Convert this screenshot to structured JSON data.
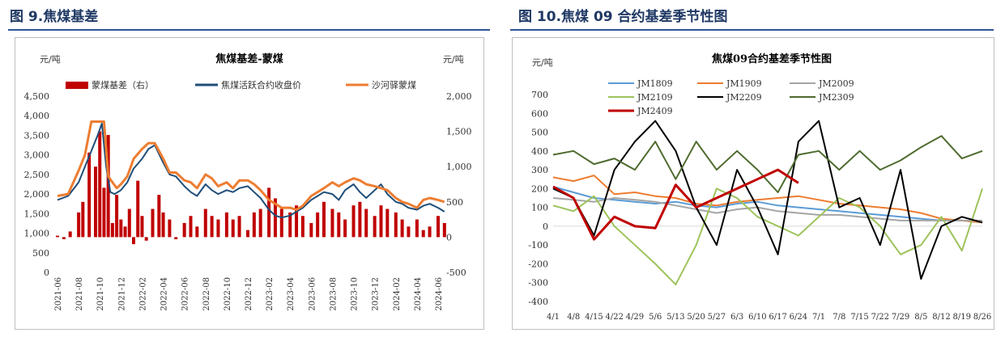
{
  "figures": [
    {
      "title": "图 9.焦煤基差"
    },
    {
      "title": "图 10.焦煤 09 合约基差季节性图"
    }
  ],
  "chart_data": [
    {
      "type": "bar+line",
      "title": "焦煤基差-蒙煤",
      "left_unit": "元/吨",
      "right_unit": "元/吨",
      "left_ylim": [
        0,
        4500
      ],
      "left_ticks": [
        "0",
        "500",
        "1,000",
        "1,500",
        "2,000",
        "2,500",
        "3,000",
        "3,500",
        "4,000",
        "4,500"
      ],
      "right_ylim": [
        -500,
        2000
      ],
      "right_ticks": [
        "-500",
        "0",
        "500",
        "1,000",
        "1,500",
        "2,000"
      ],
      "x_ticks": [
        "2021-06",
        "2021-08",
        "2021-10",
        "2021-12",
        "2022-02",
        "2022-04",
        "2022-06",
        "2022-08",
        "2022-10",
        "2022-12",
        "2023-02",
        "2023-04",
        "2023-06",
        "2023-08",
        "2023-10",
        "2023-12",
        "2024-02",
        "2024-04",
        "2024-06"
      ],
      "series": [
        {
          "name": "蒙煤基差（右）",
          "kind": "bar",
          "axis": "right",
          "color": "#c00000",
          "x": [
            0,
            0.3,
            0.6,
            1,
            1.2,
            1.5,
            1.8,
            2.0,
            2.2,
            2.4,
            2.6,
            2.8,
            3.0,
            3.2,
            3.4,
            3.6,
            3.8,
            4.0,
            4.2,
            4.5,
            4.8,
            5.0,
            5.3,
            5.6,
            6.0,
            6.3,
            6.6,
            7.0,
            7.3,
            7.6,
            8.0,
            8.3,
            8.6,
            9.0,
            9.3,
            9.6,
            10.0,
            10.3,
            10.6,
            11.0,
            11.3,
            11.6,
            12.0,
            12.3,
            12.6,
            13.0,
            13.3,
            13.6,
            14.0,
            14.3,
            14.6,
            15.0,
            15.3,
            15.6,
            16.0,
            16.3,
            16.6,
            17.0,
            17.3,
            17.6,
            18.0,
            18.3
          ],
          "values": [
            20,
            -30,
            80,
            350,
            500,
            1200,
            1000,
            1500,
            700,
            1450,
            200,
            600,
            250,
            150,
            400,
            -100,
            800,
            300,
            -50,
            400,
            600,
            350,
            250,
            -30,
            200,
            300,
            150,
            400,
            300,
            250,
            350,
            250,
            300,
            100,
            350,
            400,
            700,
            550,
            400,
            350,
            450,
            300,
            200,
            350,
            500,
            400,
            350,
            250,
            450,
            500,
            400,
            300,
            450,
            400,
            350,
            250,
            150,
            250,
            100,
            150,
            300,
            200
          ]
        },
        {
          "name": "焦煤活跃合约收盘价",
          "kind": "line",
          "axis": "left",
          "color": "#1f4e79",
          "x": [
            0,
            0.5,
            1,
            1.3,
            1.6,
            1.9,
            2.1,
            2.3,
            2.5,
            2.7,
            3,
            3.3,
            3.6,
            4,
            4.3,
            4.6,
            5,
            5.3,
            5.6,
            6,
            6.3,
            6.6,
            7,
            7.3,
            7.6,
            8,
            8.3,
            8.6,
            9,
            9.3,
            9.6,
            10,
            10.3,
            10.6,
            11,
            11.3,
            11.6,
            12,
            12.3,
            12.6,
            13,
            13.3,
            13.6,
            14,
            14.3,
            14.6,
            15,
            15.3,
            15.6,
            16,
            16.3,
            16.6,
            17,
            17.3,
            17.6,
            18,
            18.3
          ],
          "values": [
            1850,
            1950,
            2300,
            2700,
            3100,
            3500,
            3800,
            2700,
            2050,
            2000,
            2100,
            2300,
            2650,
            2900,
            3150,
            3250,
            2800,
            2500,
            2450,
            2200,
            2050,
            1950,
            2250,
            2100,
            2000,
            2100,
            2050,
            2150,
            2200,
            2050,
            1900,
            1600,
            1450,
            1400,
            1450,
            1550,
            1650,
            1850,
            1950,
            2050,
            2000,
            1850,
            2100,
            2250,
            2050,
            1900,
            2100,
            2250,
            2000,
            1800,
            1750,
            1650,
            1600,
            1700,
            1750,
            1650,
            1550
          ]
        },
        {
          "name": "沙河驿蒙煤",
          "kind": "line",
          "axis": "left",
          "color": "#ed7d31",
          "x": [
            0,
            0.5,
            1,
            1.3,
            1.6,
            1.9,
            2.2,
            2.4,
            2.6,
            2.8,
            3,
            3.3,
            3.6,
            4,
            4.3,
            4.6,
            5,
            5.3,
            5.6,
            6,
            6.3,
            6.6,
            7,
            7.3,
            7.6,
            8,
            8.3,
            8.6,
            9,
            9.3,
            9.6,
            10,
            10.3,
            10.6,
            11,
            11.3,
            11.6,
            12,
            12.3,
            12.6,
            13,
            13.3,
            13.6,
            14,
            14.3,
            14.6,
            15,
            15.3,
            15.6,
            16,
            16.3,
            16.6,
            17,
            17.3,
            17.6,
            18,
            18.3
          ],
          "values": [
            1950,
            2000,
            2600,
            3000,
            3850,
            3850,
            3850,
            2450,
            2300,
            2150,
            2250,
            2450,
            2900,
            3150,
            3300,
            3300,
            2900,
            2550,
            2550,
            2350,
            2300,
            2150,
            2500,
            2400,
            2200,
            2300,
            2150,
            2350,
            2350,
            2250,
            2100,
            1850,
            1750,
            1650,
            1650,
            1600,
            1700,
            1950,
            2050,
            2150,
            2300,
            2200,
            2300,
            2400,
            2350,
            2250,
            2200,
            2150,
            2100,
            1900,
            1800,
            1750,
            1650,
            1850,
            1900,
            1850,
            1800
          ]
        }
      ]
    },
    {
      "type": "line",
      "title": "焦煤09合约基差季节性图",
      "unit": "元/吨",
      "ylim": [
        -400,
        700
      ],
      "y_ticks": [
        "700",
        "600",
        "500",
        "400",
        "300",
        "200",
        "100",
        "0",
        "-100",
        "-200",
        "-300",
        "-400"
      ],
      "x_ticks": [
        "4/1",
        "4/8",
        "4/15",
        "4/22",
        "4/29",
        "5/6",
        "5/13",
        "5/20",
        "5/27",
        "6/3",
        "6/10",
        "6/17",
        "6/24",
        "7/1",
        "7/8",
        "7/15",
        "7/22",
        "7/29",
        "8/5",
        "8/12",
        "8/19",
        "8/26"
      ],
      "series": [
        {
          "name": "JM1809",
          "color": "#5b9bd5",
          "x": [
            0,
            1,
            2,
            3,
            4,
            5,
            6,
            7,
            8,
            9,
            10,
            11,
            12,
            13,
            14,
            15,
            16,
            17,
            18,
            19,
            20,
            21
          ],
          "values": [
            210,
            180,
            150,
            140,
            130,
            120,
            130,
            110,
            100,
            120,
            130,
            110,
            100,
            90,
            80,
            70,
            60,
            50,
            40,
            30,
            30,
            20
          ]
        },
        {
          "name": "JM1909",
          "color": "#ed7d31",
          "x": [
            0,
            1,
            2,
            3,
            4,
            5,
            6,
            7,
            8,
            9,
            10,
            11,
            12,
            13,
            14,
            15,
            16,
            17,
            18,
            19,
            20,
            21
          ],
          "values": [
            260,
            240,
            270,
            170,
            180,
            160,
            150,
            120,
            110,
            130,
            140,
            150,
            160,
            140,
            120,
            110,
            100,
            90,
            70,
            40,
            30,
            20
          ]
        },
        {
          "name": "JM2009",
          "color": "#a5a5a5",
          "x": [
            0,
            1,
            2,
            3,
            4,
            5,
            6,
            7,
            8,
            9,
            10,
            11,
            12,
            13,
            14,
            15,
            16,
            17,
            18,
            19,
            20,
            21
          ],
          "values": [
            150,
            140,
            130,
            150,
            140,
            130,
            110,
            90,
            70,
            90,
            100,
            80,
            70,
            60,
            60,
            50,
            40,
            30,
            30,
            30,
            30,
            30
          ]
        },
        {
          "name": "JM2109",
          "color": "#9dc35b",
          "x": [
            0,
            1,
            2,
            3,
            4,
            5,
            6,
            7,
            8,
            9,
            10,
            11,
            12,
            13,
            14,
            15,
            16,
            17,
            18,
            19,
            20,
            21
          ],
          "values": [
            110,
            80,
            160,
            0,
            -100,
            -200,
            -310,
            -100,
            200,
            150,
            50,
            0,
            -50,
            50,
            150,
            100,
            0,
            -150,
            -100,
            50,
            -130,
            200
          ]
        },
        {
          "name": "JM2209",
          "color": "#000000",
          "x": [
            0,
            1,
            2,
            3,
            4,
            5,
            6,
            7,
            8,
            9,
            10,
            11,
            12,
            13,
            14,
            15,
            16,
            17,
            18,
            19,
            20,
            21
          ],
          "values": [
            200,
            150,
            -50,
            300,
            450,
            560,
            400,
            100,
            -100,
            300,
            100,
            -150,
            450,
            560,
            100,
            150,
            -100,
            300,
            -280,
            0,
            50,
            20
          ]
        },
        {
          "name": "JM2309",
          "color": "#4e6b2e",
          "x": [
            0,
            1,
            2,
            3,
            4,
            5,
            6,
            7,
            8,
            9,
            10,
            11,
            12,
            13,
            14,
            15,
            16,
            17,
            18,
            19,
            20,
            21
          ],
          "values": [
            380,
            400,
            330,
            360,
            300,
            450,
            250,
            450,
            300,
            400,
            300,
            180,
            380,
            400,
            300,
            400,
            300,
            350,
            420,
            480,
            360,
            400
          ]
        },
        {
          "name": "JM2409",
          "color": "#c00000",
          "x": [
            0,
            1,
            2,
            3,
            4,
            5,
            6,
            7,
            8,
            9,
            10,
            11,
            12
          ],
          "values": [
            210,
            150,
            -70,
            50,
            0,
            -10,
            220,
            100,
            150,
            200,
            250,
            300,
            230
          ]
        }
      ]
    }
  ]
}
